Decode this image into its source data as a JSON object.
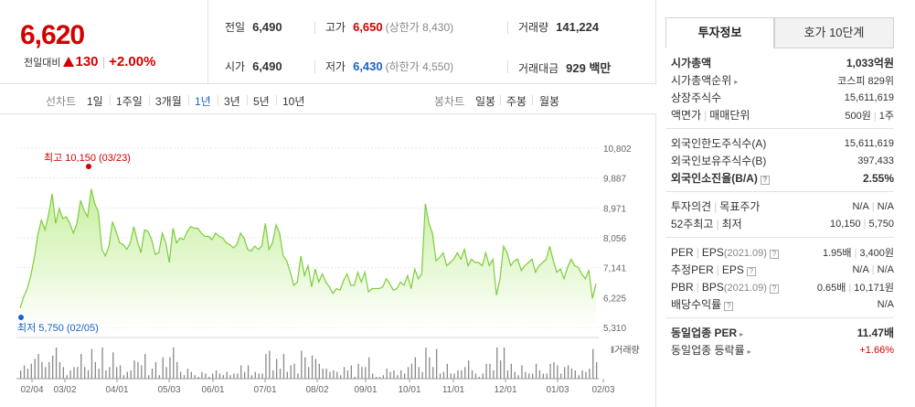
{
  "summary": {
    "price": "6,620",
    "change_label": "전일대비",
    "change_value": "130",
    "change_pct": "+2.00%",
    "prev_label": "전일",
    "prev_value": "6,490",
    "open_label": "시가",
    "open_value": "6,490",
    "high_label": "고가",
    "high_value": "6,650",
    "upper_limit": "(상한가 8,430)",
    "low_label": "저가",
    "low_value": "6,430",
    "lower_limit": "(하한가 4,550)",
    "volume_label": "거래량",
    "volume_value": "141,224",
    "amount_label": "거래대금",
    "amount_value": "929 백만"
  },
  "tabs": {
    "line_label": "선차트",
    "line_periods": [
      "1일",
      "1주일",
      "3개월",
      "1년",
      "3년",
      "5년",
      "10년"
    ],
    "active_period": "1년",
    "candle_label": "봉차트",
    "candle_periods": [
      "일봉",
      "주봉",
      "월봉"
    ]
  },
  "chart_data": {
    "type": "area",
    "yticks": [
      "10,802",
      "9,887",
      "8,971",
      "8,056",
      "7,141",
      "6,225",
      "5,310"
    ],
    "ylim": [
      5310,
      10802
    ],
    "xticks": [
      "02/04",
      "03/02",
      "04/01",
      "05/03",
      "06/01",
      "07/01",
      "08/02",
      "09/01",
      "10/01",
      "11/01",
      "12/01",
      "01/03",
      "02/03"
    ],
    "high_annotation": "최고 10,150 (03/23)",
    "low_annotation": "최저 5,750 (02/05)",
    "volume_label": "거래량",
    "price_series": [
      5900,
      6250,
      6500,
      6900,
      7450,
      8150,
      8600,
      8300,
      8750,
      9400,
      8500,
      8950,
      8650,
      8700,
      8500,
      8200,
      8500,
      9200,
      8900,
      8700,
      9550,
      9100,
      8850,
      7700,
      7500,
      7800,
      8550,
      8250,
      7900,
      7850,
      7700,
      7900,
      8400,
      7950,
      7600,
      8300,
      8250,
      8000,
      7550,
      7600,
      8200,
      7900,
      7300,
      8350,
      7900,
      8050,
      8000,
      8250,
      8400,
      8350,
      8350,
      8200,
      8100,
      8100,
      8000,
      8200,
      8100,
      8050,
      7900,
      7850,
      7750,
      7850,
      8200,
      8050,
      7700,
      7650,
      7800,
      7700,
      7800,
      8500,
      7700,
      7900,
      8450,
      8200,
      7500,
      7350,
      7000,
      6600,
      6700,
      7500,
      6900,
      7200,
      6550,
      7100,
      6700,
      6950,
      6700,
      6550,
      6350,
      6500,
      6450,
      6750,
      6950,
      6600,
      6600,
      7000,
      6700,
      7000,
      6400,
      6500,
      6500,
      6500,
      6550,
      6800,
      6650,
      6450,
      6500,
      6700,
      6600,
      6900,
      6500,
      7100,
      6800,
      6950,
      9100,
      8500,
      8200,
      7350,
      7450,
      7600,
      7200,
      7300,
      7400,
      7600,
      7400,
      7700,
      7200,
      7400,
      7300,
      7300,
      7200,
      7600,
      7200,
      7400,
      6300,
      6800,
      7800,
      7600,
      7200,
      7350,
      7400,
      7050,
      7200,
      7300,
      7400,
      7000,
      7200,
      7300,
      7400,
      7800,
      7350,
      7000,
      7100,
      6800,
      7150,
      7400,
      7200,
      7150,
      6950,
      6800,
      7050,
      6200,
      6650
    ]
  },
  "right": {
    "tab_active": "투자정보",
    "tab_other": "호가 10단계",
    "g1": {
      "mcap_label": "시가총액",
      "mcap_value": "1,033억원",
      "rank_label": "시가총액순위",
      "rank_value": "코스피 829위",
      "shares_label": "상장주식수",
      "shares_value": "15,611,619",
      "par_label1": "액면가",
      "par_label2": "매매단위",
      "par_value1": "500원",
      "par_value2": "1주"
    },
    "g2": {
      "fl_label": "외국인한도주식수(A)",
      "fl_value": "15,611,619",
      "fh_label": "외국인보유주식수(B)",
      "fh_value": "397,433",
      "fr_label": "외국인소진율(B/A)",
      "fr_value": "2.55%"
    },
    "g3": {
      "op_label1": "투자의견",
      "op_label2": "목표주가",
      "op_value1": "N/A",
      "op_value2": "N/A",
      "w_label1": "52주최고",
      "w_label2": "최저",
      "w_value1": "10,150",
      "w_value2": "5,750"
    },
    "g4": {
      "per_label1": "PER",
      "per_label2": "EPS",
      "per_period": "(2021.09)",
      "per_value1": "1.95배",
      "per_value2": "3,400원",
      "eper_label1": "추정PER",
      "eper_label2": "EPS",
      "eper_value1": "N/A",
      "eper_value2": "N/A",
      "pbr_label1": "PBR",
      "pbr_label2": "BPS",
      "pbr_period": "(2021.09)",
      "pbr_value1": "0.65배",
      "pbr_value2": "10,171원",
      "div_label": "배당수익률",
      "div_value": "N/A"
    },
    "g5": {
      "sper_label": "동일업종 PER",
      "sper_value": "11.47배",
      "srate_label": "동일업종 등락률",
      "srate_value": "+1.66%"
    }
  }
}
